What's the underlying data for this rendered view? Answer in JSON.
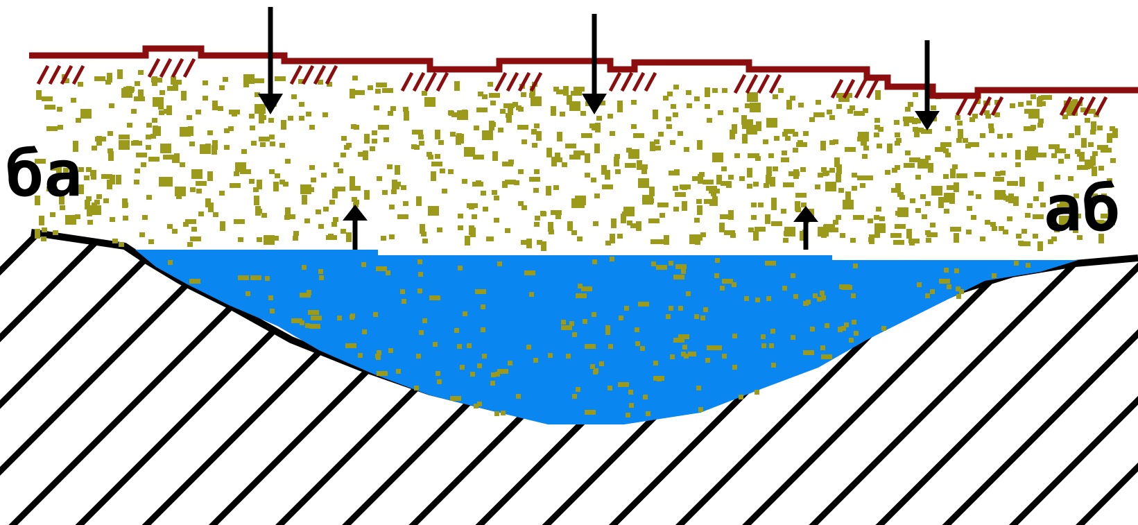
{
  "labels": {
    "left": "ба",
    "right": "аб"
  },
  "colors": {
    "ground_surface": "#8b0d0d",
    "sand_speckle": "#9c9a1a",
    "groundwater": "#0a86f0",
    "impermeable_layer": "#000000",
    "background": "#ffffff"
  },
  "icons": {
    "downward_arrows": "arrow-down-icon",
    "upward_arrows": "arrow-up-icon"
  }
}
